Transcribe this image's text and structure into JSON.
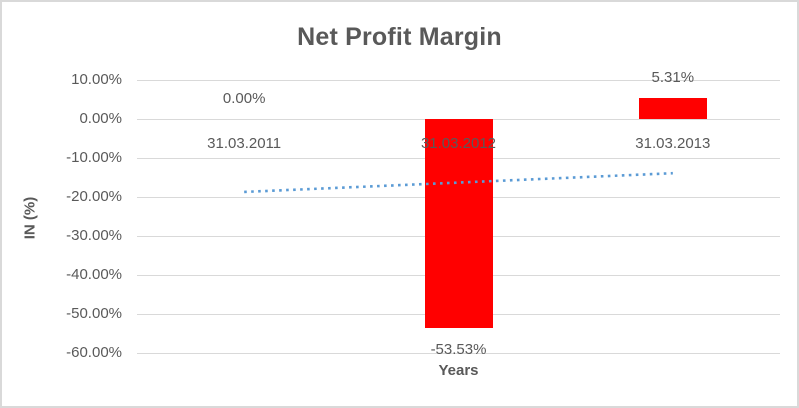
{
  "chart_data": {
    "type": "bar",
    "title": "Net Profit Margin",
    "categories": [
      "31.03.2011",
      "31.03.2012",
      "31.03.2013"
    ],
    "values": [
      0.0,
      -53.53,
      5.31
    ],
    "data_labels": [
      "0.00%",
      "-53.53%",
      "5.31%"
    ],
    "xlabel": "Years",
    "ylabel": "IN (%)",
    "ylim": [
      -60,
      10
    ],
    "ytick_step": 10,
    "ytick_labels": [
      "10.00%",
      "0.00%",
      "-10.00%",
      "-20.00%",
      "-30.00%",
      "-40.00%",
      "-50.00%",
      "-60.00%"
    ],
    "grid": true,
    "legend_position": "none",
    "bar_color": "#ff0000",
    "trendline": {
      "style": "dotted",
      "color": "#5b9bd5",
      "start_value": -18.7,
      "end_value": -13.9
    },
    "colors": {
      "text": "#595959",
      "gridline": "#d9d9d9",
      "border": "#d9d9d9",
      "background": "#ffffff"
    }
  }
}
